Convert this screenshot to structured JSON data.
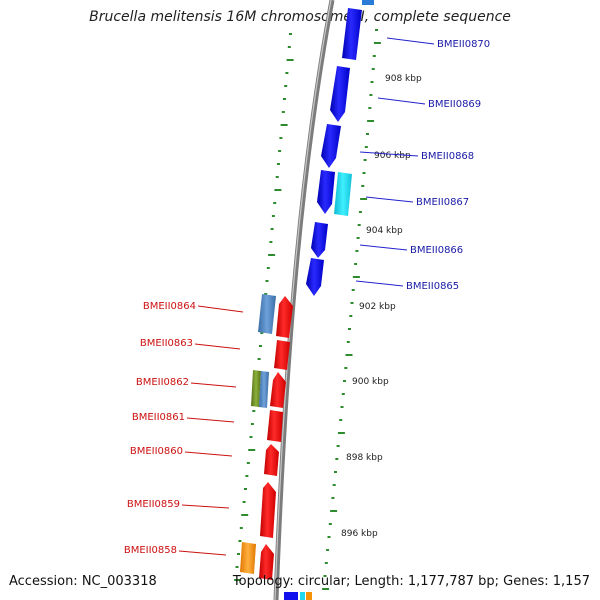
{
  "title": "Brucella melitensis 16M chromosome II, complete sequence",
  "footer": {
    "accession": "Accession: NC_003318",
    "summary": "Topology: circular; Length: 1,177,787 bp; Genes: 1,157"
  },
  "colors": {
    "forward_gene": "#1010ee",
    "reverse_gene": "#ee1111",
    "backbone": "#8c8c8c",
    "gc_ticks": "#2e8b2e",
    "label_forward": "#1a1aa8",
    "label_reverse": "#cc1111",
    "misc_cyan": "#20d8f0",
    "misc_steelblue": "#4a7fb8",
    "misc_olive": "#6b8e23",
    "misc_orange": "#f5920a"
  },
  "ruler_labels": [
    "908 kbp",
    "906 kbp",
    "904 kbp",
    "902 kbp",
    "900 kbp",
    "898 kbp",
    "896 kbp"
  ],
  "genes_forward": [
    "BMEII0870",
    "BMEII0869",
    "BMEII0868",
    "BMEII0867",
    "BMEII0866",
    "BMEII0865"
  ],
  "genes_reverse": [
    "BMEII0864",
    "BMEII0863",
    "BMEII0862",
    "BMEII0861",
    "BMEII0860",
    "BMEII0859",
    "BMEII0858"
  ]
}
